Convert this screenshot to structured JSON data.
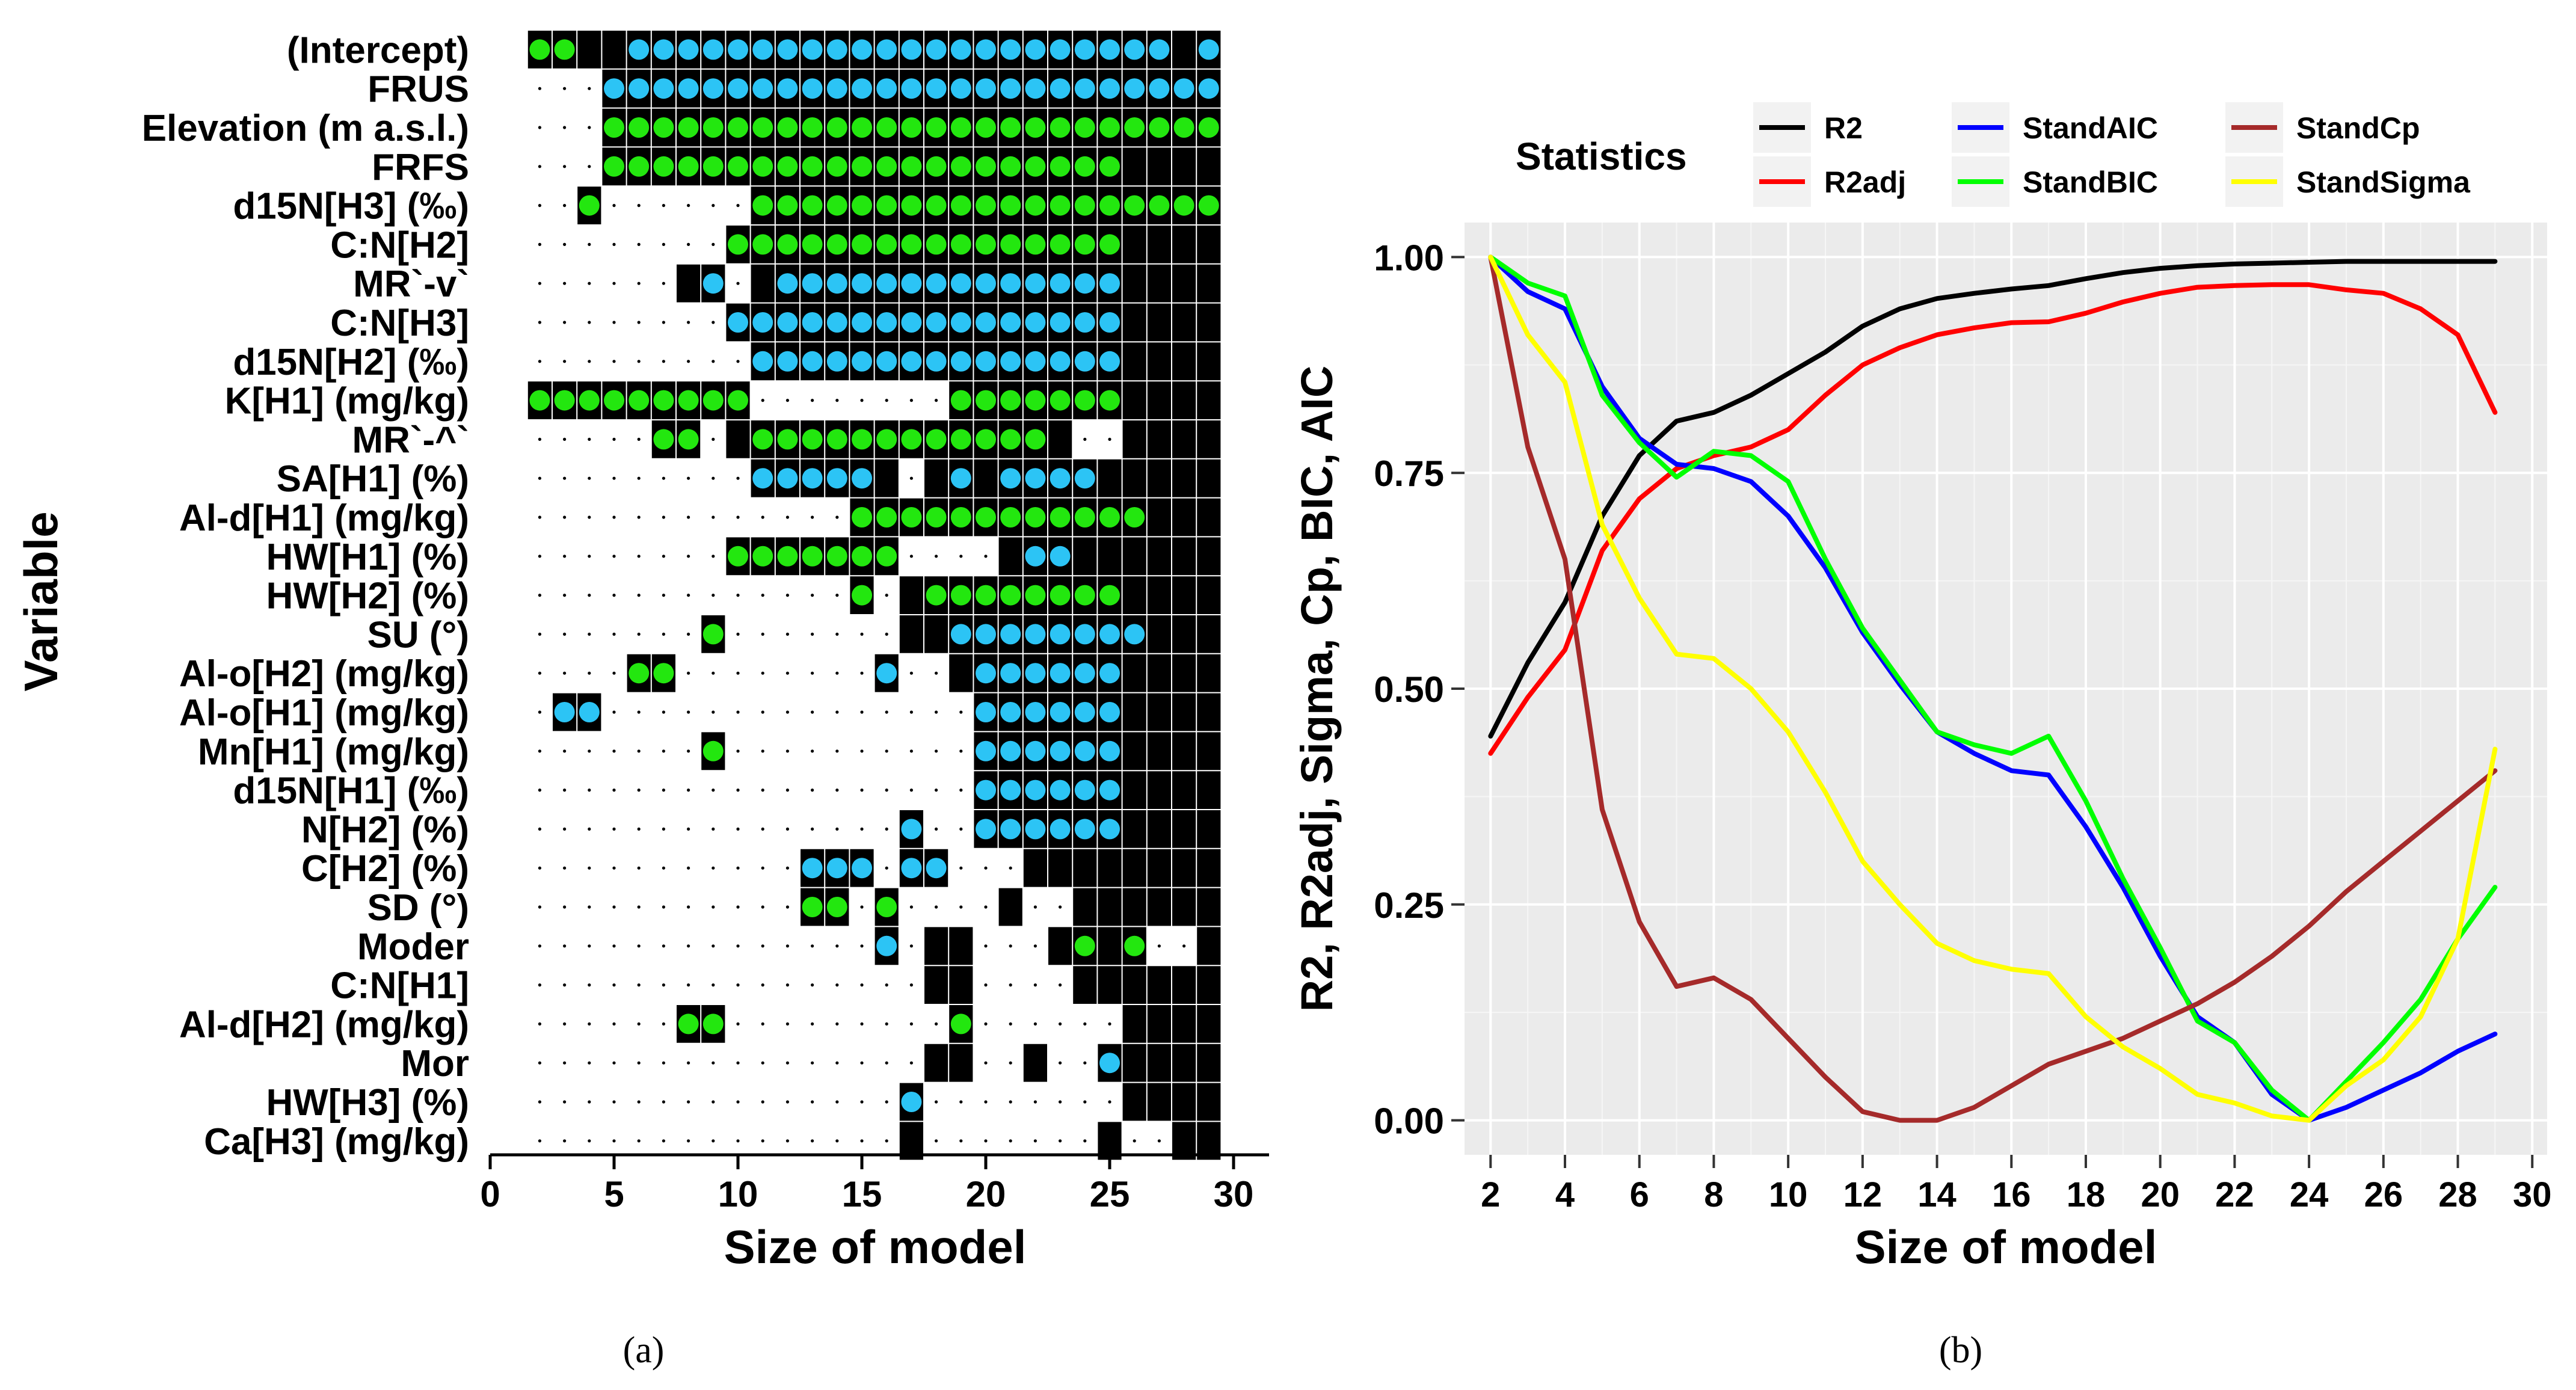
{
  "captions": {
    "a": "(a)",
    "b": "(b)"
  },
  "chart_data": [
    {
      "type": "heatmap",
      "panel": "(a)",
      "xlabel": "Size of model",
      "ylabel": "Variable",
      "xlim": [
        0,
        30
      ],
      "xticks": [
        0,
        5,
        10,
        15,
        20,
        25,
        30
      ],
      "model_sizes": [
        2,
        3,
        4,
        5,
        6,
        7,
        8,
        9,
        10,
        11,
        12,
        13,
        14,
        15,
        16,
        17,
        18,
        19,
        20,
        21,
        22,
        23,
        24,
        25,
        26,
        27,
        28,
        29
      ],
      "legend_codes": {
        "0": "not included (dot)",
        "1": "included (black)",
        "2": "green marker",
        "3": "blue marker"
      },
      "variables": [
        {
          "name": "(Intercept)",
          "cells": "2211333333333333333333333313"
        },
        {
          "name": "FRUS",
          "cells": "0003333333333333333333333333"
        },
        {
          "name": "Elevation (m a.s.l.)",
          "cells": "0002222222222222222222222222"
        },
        {
          "name": "FRFS",
          "cells": "0002222222222222222222221111"
        },
        {
          "name": "d15N[H3] (‰)",
          "cells": "0020000002222222222222222222"
        },
        {
          "name": "C:N[H2]",
          "cells": "0000000022222222222222221111"
        },
        {
          "name": "MR`-v`",
          "cells": "0000001301333333333333331111"
        },
        {
          "name": "C:N[H3]",
          "cells": "0000000033333333333333331111"
        },
        {
          "name": "d15N[H2] (‰)",
          "cells": "0000000003333333333333331111"
        },
        {
          "name": "K[H1] (mg/kg)",
          "cells": "2222222220000000022222221111"
        },
        {
          "name": "MR`-^`",
          "cells": "0000022012222222222221001111"
        },
        {
          "name": "SA[H1] (%)",
          "cells": "0000000003333310131333311111"
        },
        {
          "name": "Al-d[H1] (mg/kg)",
          "cells": "0000000000000222222222222111"
        },
        {
          "name": "HW[H1] (%)",
          "cells": "0000000022222220000133111111"
        },
        {
          "name": "HW[H2] (%)",
          "cells": "0000000000000201222222221111"
        },
        {
          "name": "SU (°)",
          "cells": "0000000200000001133333333111"
        },
        {
          "name": "Al-o[H2] (mg/kg)",
          "cells": "0000220000000030013333331111"
        },
        {
          "name": "Al-o[H1] (mg/kg)",
          "cells": "0330000000000000003333331111"
        },
        {
          "name": "Mn[H1] (mg/kg)",
          "cells": "0000000200000000003333331111"
        },
        {
          "name": "d15N[H1] (‰)",
          "cells": "0000000000000000003333331111"
        },
        {
          "name": "N[H2] (%)",
          "cells": "0000000000000003003333331111"
        },
        {
          "name": "C[H2] (%)",
          "cells": "0000000000033303300011111111"
        },
        {
          "name": "SD (°)",
          "cells": "0000000000022020000100111111"
        },
        {
          "name": "Moder",
          "cells": "0000000000000030110001212001"
        },
        {
          "name": "C:N[H1]",
          "cells": "0000000000000000110000111111"
        },
        {
          "name": "Al-d[H2] (mg/kg)",
          "cells": "0000002200000000020000001111"
        },
        {
          "name": "Mor",
          "cells": "0000000000000000110010031111"
        },
        {
          "name": "HW[H3] (%)",
          "cells": "0000000000000003000000001111"
        },
        {
          "name": "Ca[H3] (mg/kg)",
          "cells": "0000000000000001000000010011"
        }
      ]
    },
    {
      "type": "line",
      "panel": "(b)",
      "xlabel": "Size of model",
      "ylabel": "R2, R2adj, Sigma, Cp, BIC, AIC",
      "legend_title": "Statistics",
      "legend_position": "top",
      "xlim": [
        1.3,
        30.4
      ],
      "ylim": [
        -0.04,
        1.04
      ],
      "xticks": [
        2,
        4,
        6,
        8,
        10,
        12,
        14,
        16,
        18,
        20,
        22,
        24,
        26,
        28,
        30
      ],
      "yticks": [
        0,
        0.25,
        0.5,
        0.75,
        1.0
      ],
      "ytick_labels": [
        "0.00",
        "0.25",
        "0.50",
        "0.75",
        "1.00"
      ],
      "x": [
        2,
        3,
        4,
        5,
        6,
        7,
        8,
        9,
        10,
        11,
        12,
        13,
        14,
        15,
        16,
        17,
        18,
        19,
        20,
        21,
        22,
        23,
        24,
        25,
        26,
        27,
        28,
        29
      ],
      "series": [
        {
          "name": "R2",
          "color": "#000000",
          "values": [
            0.445,
            0.53,
            0.6,
            0.7,
            0.77,
            0.81,
            0.82,
            0.84,
            0.865,
            0.89,
            0.92,
            0.94,
            0.952,
            0.958,
            0.963,
            0.967,
            0.975,
            0.982,
            0.987,
            0.99,
            0.992,
            0.993,
            0.994,
            0.995,
            0.995,
            0.995,
            0.995,
            0.995
          ]
        },
        {
          "name": "R2adj",
          "color": "#ff0000",
          "values": [
            0.425,
            0.49,
            0.545,
            0.66,
            0.72,
            0.755,
            0.77,
            0.78,
            0.8,
            0.84,
            0.875,
            0.895,
            0.91,
            0.918,
            0.924,
            0.925,
            0.935,
            0.948,
            0.958,
            0.965,
            0.967,
            0.968,
            0.968,
            0.962,
            0.958,
            0.94,
            0.91,
            0.82
          ]
        },
        {
          "name": "StandAIC",
          "color": "#0000ff",
          "values": [
            1.0,
            0.96,
            0.94,
            0.85,
            0.79,
            0.76,
            0.755,
            0.74,
            0.7,
            0.64,
            0.565,
            0.505,
            0.45,
            0.425,
            0.405,
            0.4,
            0.34,
            0.27,
            0.19,
            0.12,
            0.09,
            0.03,
            0.0,
            0.015,
            0.035,
            0.055,
            0.08,
            0.1
          ]
        },
        {
          "name": "StandBIC",
          "color": "#00ff00",
          "values": [
            1.0,
            0.97,
            0.955,
            0.84,
            0.785,
            0.745,
            0.775,
            0.77,
            0.74,
            0.65,
            0.57,
            0.51,
            0.45,
            0.435,
            0.425,
            0.445,
            0.37,
            0.28,
            0.2,
            0.115,
            0.09,
            0.035,
            0.0,
            0.045,
            0.09,
            0.14,
            0.21,
            0.27
          ]
        },
        {
          "name": "StandCp",
          "color": "#a52a2a",
          "values": [
            1.0,
            0.78,
            0.65,
            0.36,
            0.23,
            0.155,
            0.165,
            0.14,
            0.095,
            0.05,
            0.01,
            0.0,
            0.0,
            0.015,
            0.04,
            0.065,
            0.08,
            0.095,
            0.115,
            0.135,
            0.16,
            0.19,
            0.225,
            0.265,
            0.3,
            0.335,
            0.37,
            0.405
          ]
        },
        {
          "name": "StandSigma",
          "color": "#ffff00",
          "values": [
            1.0,
            0.91,
            0.855,
            0.69,
            0.605,
            0.54,
            0.535,
            0.5,
            0.45,
            0.38,
            0.3,
            0.25,
            0.205,
            0.185,
            0.175,
            0.17,
            0.12,
            0.085,
            0.06,
            0.03,
            0.02,
            0.005,
            0.0,
            0.04,
            0.07,
            0.12,
            0.21,
            0.43
          ]
        }
      ]
    }
  ]
}
